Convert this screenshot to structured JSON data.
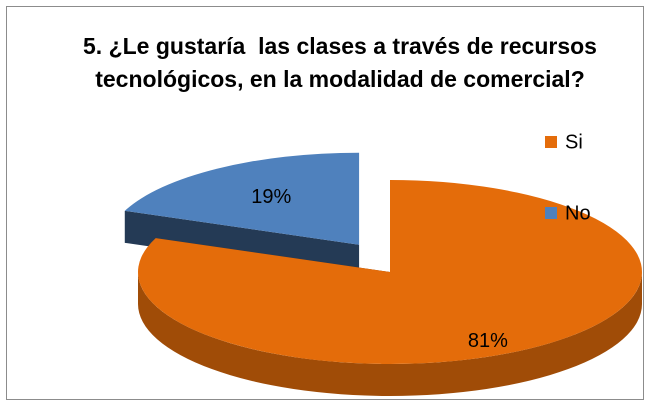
{
  "chart_data": {
    "type": "pie",
    "title": "5. ¿Le gustaría  las clases a través de recursos tecnológicos, en la modalidad de comercial?",
    "categories": [
      "Si",
      "No"
    ],
    "values": [
      81,
      19
    ],
    "value_labels": [
      "81%",
      "19%"
    ],
    "colors": [
      "#e46c0a",
      "#4f81bd"
    ],
    "legend": "right"
  }
}
